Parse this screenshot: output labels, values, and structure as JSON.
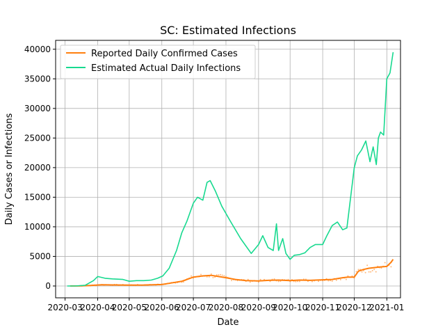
{
  "chart_data": {
    "type": "line",
    "title": "SC: Estimated Infections",
    "xlabel": "Date",
    "ylabel": "Daily Cases or Infections",
    "xlim": [
      "2020-02-21",
      "2021-01-14"
    ],
    "ylim": [
      -2000,
      41500
    ],
    "grid": true,
    "legend_position": "top-left",
    "x_ticks": [
      "2020-03",
      "2020-04",
      "2020-05",
      "2020-06",
      "2020-07",
      "2020-08",
      "2020-09",
      "2020-10",
      "2020-11",
      "2020-12",
      "2021-01"
    ],
    "y_ticks": [
      0,
      5000,
      10000,
      15000,
      20000,
      25000,
      30000,
      35000,
      40000
    ],
    "colors": {
      "reported": "#ff7f0e",
      "estimated": "#17d98f"
    },
    "series": [
      {
        "name": "Reported Daily Confirmed Cases",
        "color": "#ff7f0e",
        "x": [
          "2020-03-06",
          "2020-03-15",
          "2020-03-25",
          "2020-04-05",
          "2020-04-15",
          "2020-05-01",
          "2020-05-15",
          "2020-06-01",
          "2020-06-10",
          "2020-06-20",
          "2020-06-25",
          "2020-07-01",
          "2020-07-10",
          "2020-07-18",
          "2020-07-25",
          "2020-08-01",
          "2020-08-10",
          "2020-08-20",
          "2020-09-01",
          "2020-09-10",
          "2020-09-20",
          "2020-10-01",
          "2020-10-10",
          "2020-10-20",
          "2020-11-01",
          "2020-11-10",
          "2020-11-20",
          "2020-11-25",
          "2020-12-01",
          "2020-12-05",
          "2020-12-10",
          "2020-12-15",
          "2020-12-20",
          "2020-12-25",
          "2021-01-01",
          "2021-01-05",
          "2021-01-07"
        ],
        "values": [
          0,
          10,
          80,
          200,
          180,
          150,
          160,
          250,
          500,
          800,
          1100,
          1500,
          1700,
          1800,
          1600,
          1400,
          1100,
          900,
          850,
          950,
          1000,
          900,
          1000,
          950,
          1050,
          1100,
          1400,
          1500,
          1500,
          2500,
          2800,
          3000,
          3100,
          3200,
          3300,
          4000,
          4500
        ]
      },
      {
        "name": "Estimated Actual Daily Infections",
        "color": "#17d98f",
        "x": [
          "2020-03-03",
          "2020-03-10",
          "2020-03-20",
          "2020-03-28",
          "2020-04-01",
          "2020-04-08",
          "2020-04-15",
          "2020-04-25",
          "2020-05-01",
          "2020-05-08",
          "2020-05-15",
          "2020-05-22",
          "2020-05-28",
          "2020-06-02",
          "2020-06-08",
          "2020-06-15",
          "2020-06-20",
          "2020-06-25",
          "2020-07-01",
          "2020-07-05",
          "2020-07-10",
          "2020-07-14",
          "2020-07-17",
          "2020-07-22",
          "2020-07-28",
          "2020-08-05",
          "2020-08-15",
          "2020-08-25",
          "2020-09-01",
          "2020-09-05",
          "2020-09-10",
          "2020-09-15",
          "2020-09-18",
          "2020-09-20",
          "2020-09-24",
          "2020-09-27",
          "2020-10-01",
          "2020-10-05",
          "2020-10-10",
          "2020-10-15",
          "2020-10-20",
          "2020-10-25",
          "2020-11-01",
          "2020-11-05",
          "2020-11-10",
          "2020-11-15",
          "2020-11-20",
          "2020-11-24",
          "2020-12-01",
          "2020-12-04",
          "2020-12-08",
          "2020-12-12",
          "2020-12-16",
          "2020-12-19",
          "2020-12-22",
          "2020-12-24",
          "2020-12-26",
          "2020-12-29",
          "2021-01-01",
          "2021-01-04",
          "2021-01-07"
        ],
        "values": [
          0,
          0,
          100,
          900,
          1600,
          1300,
          1200,
          1100,
          800,
          900,
          900,
          1000,
          1300,
          1700,
          3000,
          6000,
          9000,
          11000,
          14000,
          15000,
          14500,
          17500,
          17800,
          16000,
          13500,
          11000,
          8000,
          5500,
          7000,
          8500,
          6500,
          6000,
          10500,
          6000,
          8000,
          5500,
          4500,
          5200,
          5300,
          5600,
          6500,
          7000,
          7000,
          8500,
          10200,
          10800,
          9500,
          9800,
          20000,
          22000,
          23000,
          24500,
          21000,
          23500,
          20500,
          25000,
          26000,
          25500,
          35000,
          36000,
          39500
        ]
      }
    ]
  }
}
